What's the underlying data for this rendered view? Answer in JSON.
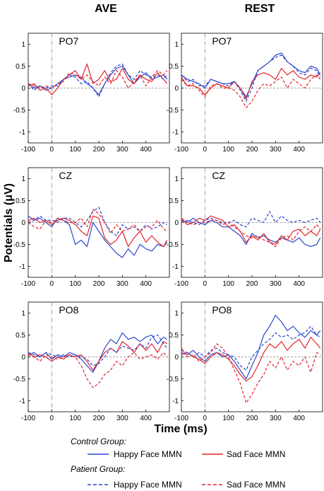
{
  "chart_data": {
    "type": "line",
    "column_titles": [
      "AVE",
      "REST"
    ],
    "xlabel": "Time (ms)",
    "ylabel": "Potentials (μV)",
    "xlim": [
      -100,
      500
    ],
    "ylim": [
      -1.25,
      1.25
    ],
    "x_ticks": [
      -100,
      0,
      100,
      200,
      300,
      400
    ],
    "y_ticks": [
      -1,
      -0.5,
      0,
      0.5,
      1
    ],
    "y_tick_labels": [
      "-1",
      "-0.5",
      "0",
      "0.5",
      "1"
    ],
    "stimulus_onset_ms": 0,
    "grid": false,
    "legend": {
      "placement": "bottom",
      "groups": [
        {
          "label": "Control Group:",
          "items": [
            {
              "label": "Happy Face MMN",
              "color": "#2a46c9",
              "dash": "solid"
            },
            {
              "label": "Sad Face MMN",
              "color": "#e0242b",
              "dash": "solid"
            }
          ]
        },
        {
          "label": "Patient Group:",
          "items": [
            {
              "label": "Happy Face MMN",
              "color": "#2a46c9",
              "dash": "dashed"
            },
            {
              "label": "Sad Face MMN",
              "color": "#e0242b",
              "dash": "dashed"
            }
          ]
        }
      ]
    },
    "x": [
      -100,
      -75,
      -50,
      -25,
      0,
      25,
      50,
      75,
      100,
      125,
      150,
      175,
      200,
      225,
      250,
      275,
      300,
      325,
      350,
      375,
      400,
      425,
      450,
      475,
      490
    ],
    "panels": [
      {
        "column": "AVE",
        "channel": "PO7",
        "series": [
          {
            "group": "Control",
            "condition": "Happy",
            "values": [
              0.1,
              0.0,
              0.05,
              -0.05,
              0.0,
              0.1,
              0.2,
              0.25,
              0.3,
              0.25,
              0.1,
              0.0,
              -0.15,
              0.1,
              0.3,
              0.45,
              0.5,
              0.3,
              0.1,
              0.25,
              0.35,
              0.2,
              0.25,
              0.3,
              0.2
            ]
          },
          {
            "group": "Control",
            "condition": "Sad",
            "values": [
              0.05,
              0.1,
              -0.05,
              0.0,
              -0.15,
              0.0,
              0.2,
              0.3,
              0.4,
              0.2,
              0.55,
              0.1,
              0.2,
              0.4,
              0.15,
              0.2,
              0.45,
              0.2,
              0.1,
              0.3,
              0.2,
              0.15,
              0.35,
              0.2,
              0.1
            ]
          },
          {
            "group": "Patient",
            "condition": "Happy",
            "values": [
              0.1,
              -0.05,
              0.05,
              0.0,
              0.05,
              0.05,
              0.2,
              0.3,
              0.25,
              0.1,
              0.15,
              0.0,
              -0.2,
              0.1,
              0.35,
              0.5,
              0.55,
              0.3,
              0.2,
              0.4,
              0.3,
              0.25,
              0.3,
              0.2,
              0.3
            ]
          },
          {
            "group": "Patient",
            "condition": "Sad",
            "values": [
              0.1,
              0.05,
              0.0,
              0.05,
              0.0,
              0.1,
              0.15,
              0.35,
              0.3,
              0.2,
              0.3,
              0.15,
              0.05,
              0.25,
              0.1,
              0.4,
              0.25,
              0.0,
              0.15,
              0.3,
              0.05,
              0.25,
              0.4,
              0.3,
              0.4
            ]
          }
        ]
      },
      {
        "column": "REST",
        "channel": "PO7",
        "series": [
          {
            "group": "Control",
            "condition": "Happy",
            "values": [
              0.3,
              0.2,
              0.15,
              0.1,
              0.0,
              0.2,
              0.15,
              0.1,
              0.1,
              0.15,
              0.0,
              -0.2,
              0.1,
              0.4,
              0.5,
              0.6,
              0.75,
              0.8,
              0.6,
              0.5,
              0.4,
              0.35,
              0.5,
              0.45,
              0.3
            ]
          },
          {
            "group": "Control",
            "condition": "Sad",
            "values": [
              0.25,
              0.05,
              0.05,
              0.0,
              -0.15,
              0.0,
              0.1,
              0.05,
              0.0,
              0.15,
              0.0,
              -0.25,
              0.15,
              0.3,
              0.35,
              0.3,
              0.2,
              0.45,
              0.3,
              0.4,
              0.25,
              0.2,
              0.3,
              0.25,
              0.35
            ]
          },
          {
            "group": "Patient",
            "condition": "Happy",
            "values": [
              0.3,
              0.15,
              0.2,
              0.05,
              0.05,
              0.2,
              0.15,
              0.1,
              0.05,
              0.15,
              -0.05,
              -0.3,
              0.0,
              0.4,
              0.5,
              0.6,
              0.7,
              0.75,
              0.6,
              0.5,
              0.35,
              0.3,
              0.45,
              0.4,
              0.25
            ]
          },
          {
            "group": "Patient",
            "condition": "Sad",
            "values": [
              0.2,
              0.05,
              0.1,
              -0.05,
              -0.2,
              0.05,
              0.1,
              0.0,
              0.0,
              -0.05,
              -0.2,
              -0.45,
              -0.3,
              -0.05,
              0.1,
              0.05,
              0.15,
              0.25,
              0.0,
              0.2,
              0.1,
              0.0,
              0.2,
              0.3,
              0.2
            ]
          }
        ]
      },
      {
        "column": "AVE",
        "channel": "CZ",
        "series": [
          {
            "group": "Control",
            "condition": "Happy",
            "values": [
              0.15,
              0.05,
              0.1,
              0.0,
              -0.1,
              0.1,
              0.05,
              -0.05,
              -0.5,
              -0.4,
              -0.55,
              0.0,
              -0.2,
              -0.4,
              -0.55,
              -0.7,
              -0.8,
              -0.6,
              -0.75,
              -0.5,
              -0.6,
              -0.65,
              -0.5,
              -0.55,
              -0.45
            ]
          },
          {
            "group": "Control",
            "condition": "Sad",
            "values": [
              0.05,
              0.1,
              0.0,
              0.05,
              -0.05,
              0.05,
              0.1,
              0.05,
              -0.05,
              -0.2,
              -0.3,
              0.15,
              0.1,
              -0.35,
              -0.5,
              -0.4,
              -0.2,
              -0.55,
              -0.35,
              -0.2,
              -0.45,
              -0.3,
              -0.45,
              -0.55,
              -0.4
            ]
          },
          {
            "group": "Patient",
            "condition": "Happy",
            "values": [
              0.0,
              0.05,
              0.15,
              0.05,
              0.05,
              0.0,
              0.1,
              0.1,
              0.0,
              -0.1,
              0.05,
              0.25,
              0.35,
              0.0,
              -0.2,
              -0.3,
              -0.05,
              -0.15,
              -0.1,
              -0.2,
              -0.05,
              -0.15,
              -0.1,
              0.0,
              -0.05
            ]
          },
          {
            "group": "Patient",
            "condition": "Sad",
            "values": [
              0.0,
              -0.1,
              -0.15,
              0.05,
              0.0,
              0.1,
              0.05,
              0.0,
              0.0,
              0.1,
              -0.1,
              0.3,
              0.2,
              0.0,
              -0.25,
              -0.05,
              -0.2,
              -0.15,
              -0.05,
              -0.2,
              -0.1,
              -0.1,
              0.05,
              -0.15,
              -0.2
            ]
          }
        ]
      },
      {
        "column": "REST",
        "channel": "CZ",
        "series": [
          {
            "group": "Control",
            "condition": "Happy",
            "values": [
              0.05,
              0.0,
              0.1,
              0.0,
              -0.05,
              0.05,
              0.0,
              -0.1,
              -0.1,
              -0.2,
              -0.3,
              -0.5,
              -0.25,
              -0.35,
              -0.3,
              -0.4,
              -0.45,
              -0.35,
              -0.4,
              -0.45,
              -0.35,
              -0.5,
              -0.55,
              -0.5,
              -0.35
            ]
          },
          {
            "group": "Control",
            "condition": "Sad",
            "values": [
              0.1,
              -0.05,
              0.0,
              0.1,
              0.05,
              0.15,
              0.1,
              0.05,
              -0.1,
              -0.05,
              -0.2,
              -0.45,
              -0.3,
              -0.4,
              -0.25,
              -0.45,
              -0.5,
              -0.3,
              -0.4,
              -0.2,
              -0.15,
              -0.3,
              -0.2,
              -0.3,
              -0.15
            ]
          },
          {
            "group": "Patient",
            "condition": "Happy",
            "values": [
              0.0,
              0.05,
              0.0,
              -0.05,
              0.05,
              0.1,
              0.05,
              0.0,
              0.0,
              0.05,
              -0.05,
              -0.1,
              0.1,
              0.05,
              0.0,
              0.25,
              0.0,
              0.15,
              0.05,
              0.0,
              0.05,
              0.0,
              0.05,
              0.1,
              0.0
            ]
          },
          {
            "group": "Patient",
            "condition": "Sad",
            "values": [
              0.1,
              0.0,
              -0.05,
              0.0,
              0.0,
              0.05,
              0.05,
              -0.05,
              0.0,
              -0.1,
              -0.2,
              -0.3,
              -0.35,
              -0.3,
              -0.4,
              -0.45,
              -0.55,
              -0.35,
              -0.3,
              -0.4,
              -0.2,
              -0.1,
              -0.2,
              -0.05,
              -0.15
            ]
          }
        ]
      },
      {
        "column": "AVE",
        "channel": "PO8",
        "series": [
          {
            "group": "Control",
            "condition": "Happy",
            "values": [
              0.05,
              0.1,
              0.0,
              0.1,
              -0.05,
              0.05,
              0.0,
              0.1,
              0.05,
              -0.05,
              -0.2,
              -0.35,
              -0.1,
              0.2,
              0.4,
              0.3,
              0.55,
              0.4,
              0.45,
              0.35,
              0.45,
              0.5,
              0.3,
              0.45,
              0.4
            ]
          },
          {
            "group": "Control",
            "condition": "Sad",
            "values": [
              0.1,
              0.0,
              0.05,
              0.0,
              -0.1,
              0.0,
              -0.05,
              0.05,
              0.0,
              0.05,
              -0.1,
              -0.3,
              -0.1,
              0.1,
              0.2,
              0.1,
              0.35,
              0.25,
              0.1,
              0.3,
              0.15,
              0.3,
              0.1,
              0.35,
              0.3
            ]
          },
          {
            "group": "Patient",
            "condition": "Happy",
            "values": [
              0.1,
              0.05,
              0.0,
              0.1,
              0.05,
              0.0,
              0.05,
              0.0,
              0.05,
              0.0,
              -0.05,
              -0.2,
              -0.15,
              0.0,
              0.2,
              0.1,
              0.25,
              0.2,
              0.15,
              0.3,
              0.2,
              0.45,
              0.5,
              0.3,
              0.2
            ]
          },
          {
            "group": "Patient",
            "condition": "Sad",
            "values": [
              0.05,
              0.0,
              -0.1,
              0.05,
              0.0,
              -0.05,
              0.0,
              0.05,
              0.0,
              -0.2,
              -0.5,
              -0.7,
              -0.6,
              -0.4,
              -0.3,
              -0.1,
              -0.2,
              0.0,
              0.1,
              -0.05,
              0.0,
              0.05,
              -0.05,
              0.1,
              0.0
            ]
          }
        ]
      },
      {
        "column": "REST",
        "channel": "PO8",
        "series": [
          {
            "group": "Control",
            "condition": "Happy",
            "values": [
              0.1,
              0.05,
              0.15,
              0.0,
              -0.1,
              0.05,
              0.1,
              0.0,
              0.05,
              -0.1,
              -0.3,
              -0.5,
              -0.2,
              0.1,
              0.5,
              0.7,
              0.95,
              0.8,
              0.6,
              0.7,
              0.55,
              0.45,
              0.6,
              0.5,
              0.6
            ]
          },
          {
            "group": "Control",
            "condition": "Sad",
            "values": [
              0.05,
              0.1,
              0.0,
              -0.05,
              -0.15,
              0.0,
              0.1,
              0.05,
              -0.05,
              -0.2,
              -0.4,
              -0.55,
              -0.45,
              -0.2,
              0.1,
              0.3,
              0.2,
              0.35,
              0.15,
              0.3,
              0.4,
              0.2,
              0.45,
              0.3,
              0.2
            ]
          },
          {
            "group": "Patient",
            "condition": "Happy",
            "values": [
              0.15,
              0.1,
              0.0,
              0.1,
              0.0,
              0.15,
              0.2,
              0.1,
              0.05,
              0.0,
              -0.2,
              -0.3,
              0.0,
              0.15,
              0.3,
              0.4,
              0.55,
              0.45,
              0.5,
              0.4,
              0.5,
              0.55,
              0.7,
              0.5,
              0.45
            ]
          },
          {
            "group": "Patient",
            "condition": "Sad",
            "values": [
              0.2,
              0.0,
              0.05,
              -0.1,
              0.0,
              0.1,
              0.3,
              0.2,
              0.0,
              -0.3,
              -0.6,
              -1.05,
              -0.85,
              -0.6,
              -0.4,
              -0.1,
              -0.25,
              0.0,
              -0.3,
              -0.1,
              -0.2,
              0.0,
              -0.35,
              0.1,
              0.05
            ]
          }
        ]
      }
    ]
  }
}
